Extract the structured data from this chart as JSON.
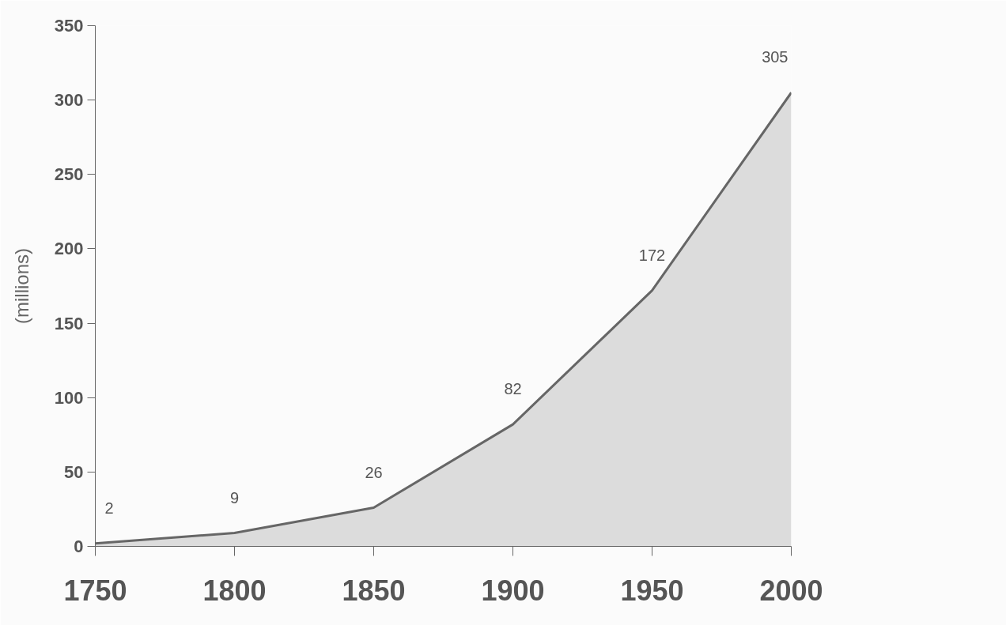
{
  "chart_data": {
    "type": "area",
    "ylabel": "(millions)",
    "x": [
      1750,
      1800,
      1850,
      1900,
      1950,
      2000
    ],
    "series": [
      {
        "color": "#dcdcdc",
        "values": [
          2,
          9,
          26,
          82,
          172,
          305
        ]
      }
    ],
    "xlim": [
      1750,
      2000
    ],
    "xticks": [
      1750,
      1800,
      1850,
      1900,
      1950,
      2000
    ],
    "ylim": [
      0,
      350
    ],
    "yticks": [
      0,
      50,
      100,
      150,
      200,
      250,
      300,
      350
    ],
    "data_labels": true,
    "grid": false
  }
}
